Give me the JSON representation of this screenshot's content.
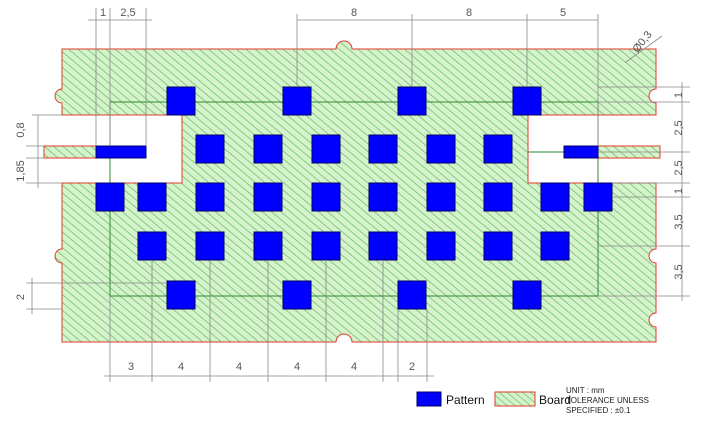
{
  "title": "",
  "colors": {
    "pattern": "#0000ff",
    "pattern_edge": "#000066",
    "board_fill": "#d6f2cc",
    "board_hatch": "#55bb55",
    "board_outline": "#e03a2a",
    "inner_outline": "#2f8a2f",
    "dimension_line": "#888888"
  },
  "dimensions": {
    "top": [
      "1",
      "2,5",
      "8",
      "8",
      "5"
    ],
    "diameter": "Ø0,3",
    "left": [
      "0,8",
      "1,85",
      "2"
    ],
    "right": [
      "1",
      "2,5",
      "2,5",
      "1",
      "3,5",
      "3,5"
    ],
    "bottom": [
      "3",
      "4",
      "4",
      "4",
      "4",
      "2"
    ]
  },
  "legend": {
    "pattern_label": "Pattern",
    "board_label": "Board"
  },
  "note": {
    "unit": "UNIT : mm",
    "line2": "TOLERANCE UNLESS",
    "line3": "SPECIFIED : ±0.1"
  }
}
